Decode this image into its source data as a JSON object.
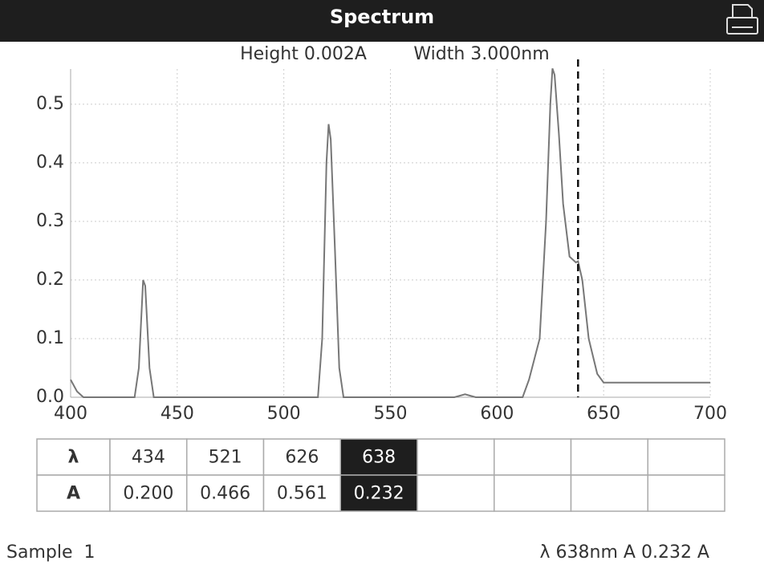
{
  "header": {
    "title": "Spectrum"
  },
  "chart_data": {
    "type": "line",
    "subtitle": [
      "Height 0.002A",
      "Width 3.000nm"
    ],
    "x": [
      400,
      403,
      406,
      430,
      432,
      434,
      435,
      437,
      439,
      516,
      518,
      520,
      521,
      522,
      524,
      526,
      528,
      580,
      585,
      590,
      612,
      615,
      620,
      623,
      625,
      626,
      627,
      629,
      631,
      634,
      637,
      638,
      640,
      643,
      647,
      650,
      700
    ],
    "series": [
      {
        "color": "#777777",
        "values": [
          0.03,
          0.01,
          0.0,
          0.0,
          0.05,
          0.2,
          0.19,
          0.05,
          0.0,
          0.0,
          0.1,
          0.4,
          0.466,
          0.44,
          0.25,
          0.05,
          0.0,
          0.0,
          0.005,
          0.0,
          0.0,
          0.03,
          0.1,
          0.3,
          0.5,
          0.561,
          0.55,
          0.45,
          0.33,
          0.24,
          0.23,
          0.232,
          0.2,
          0.1,
          0.04,
          0.025,
          0.025
        ]
      }
    ],
    "xlim": [
      400,
      700
    ],
    "xticks": [
      400,
      450,
      500,
      550,
      600,
      650,
      700
    ],
    "ylim": [
      0,
      0.56
    ],
    "yticks": [
      {
        "value": 0,
        "label": "0.0"
      },
      0.1,
      0.2,
      0.3,
      0.4,
      0.5
    ],
    "grid": true,
    "cursor": 638
  },
  "table": {
    "rows": [
      [
        "λ",
        "434",
        "521",
        "626",
        "638"
      ],
      [
        "A",
        "0.200",
        "0.466",
        "0.561",
        "0.232"
      ]
    ],
    "highlight": 4
  },
  "status": {
    "sample": "Sample  1",
    "reading": "λ 638nm A 0.232 A"
  }
}
